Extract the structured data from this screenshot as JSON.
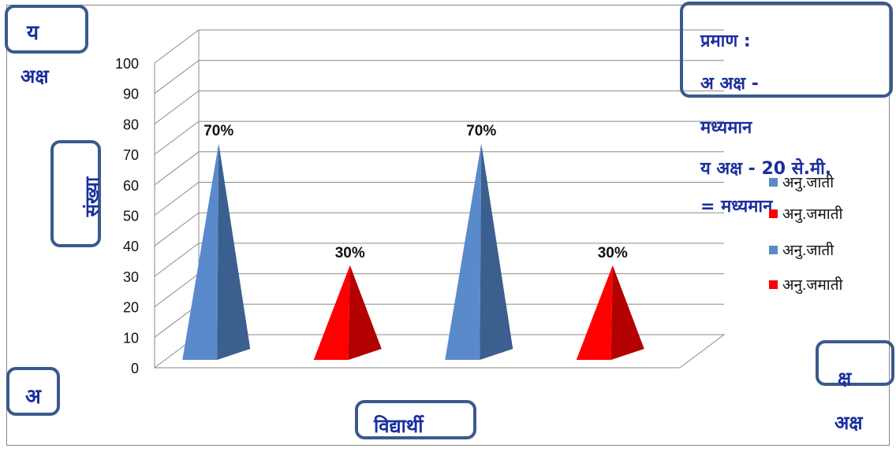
{
  "corner_labels": {
    "top_left": "य",
    "top_left_below": "अक्ष",
    "bottom_left": "अ",
    "bottom_right_top": "क्ष",
    "bottom_right": "अक्ष"
  },
  "scale_note": {
    "heading": "प्रमाण :",
    "line1": "अ अक्ष  -",
    "line2": "मध्यमान",
    "line3": "य अक्ष - 20 से.मी.",
    "line4": "= मध्यमान"
  },
  "colors": {
    "blue": "#5b8acb",
    "red": "#ff0000",
    "navy_text": "#1b2fa0",
    "callout_border": "#3a5a8c"
  },
  "chart_data": {
    "type": "bar",
    "bar_shape": "pyramid-3d",
    "xlabel": "विद्यार्थी",
    "ylabel": "संख्या",
    "ylim": [
      0,
      100
    ],
    "yticks": [
      0,
      10,
      20,
      30,
      40,
      50,
      60,
      70,
      80,
      90,
      100
    ],
    "grid": true,
    "legend_position": "right",
    "bars": [
      {
        "label": "70%",
        "value": 70,
        "color": "#5b8acb"
      },
      {
        "label": "30%",
        "value": 30,
        "color": "#ff0000"
      },
      {
        "label": "70%",
        "value": 70,
        "color": "#5b8acb"
      },
      {
        "label": "30%",
        "value": 30,
        "color": "#ff0000"
      }
    ],
    "legend": [
      {
        "name": "अनु.जाती",
        "color": "#5b8acb"
      },
      {
        "name": "अनु.जमाती",
        "color": "#ff0000"
      },
      {
        "name": "अनु.जाती",
        "color": "#5b8acb"
      },
      {
        "name": "अनु.जमाती",
        "color": "#ff0000"
      }
    ]
  }
}
